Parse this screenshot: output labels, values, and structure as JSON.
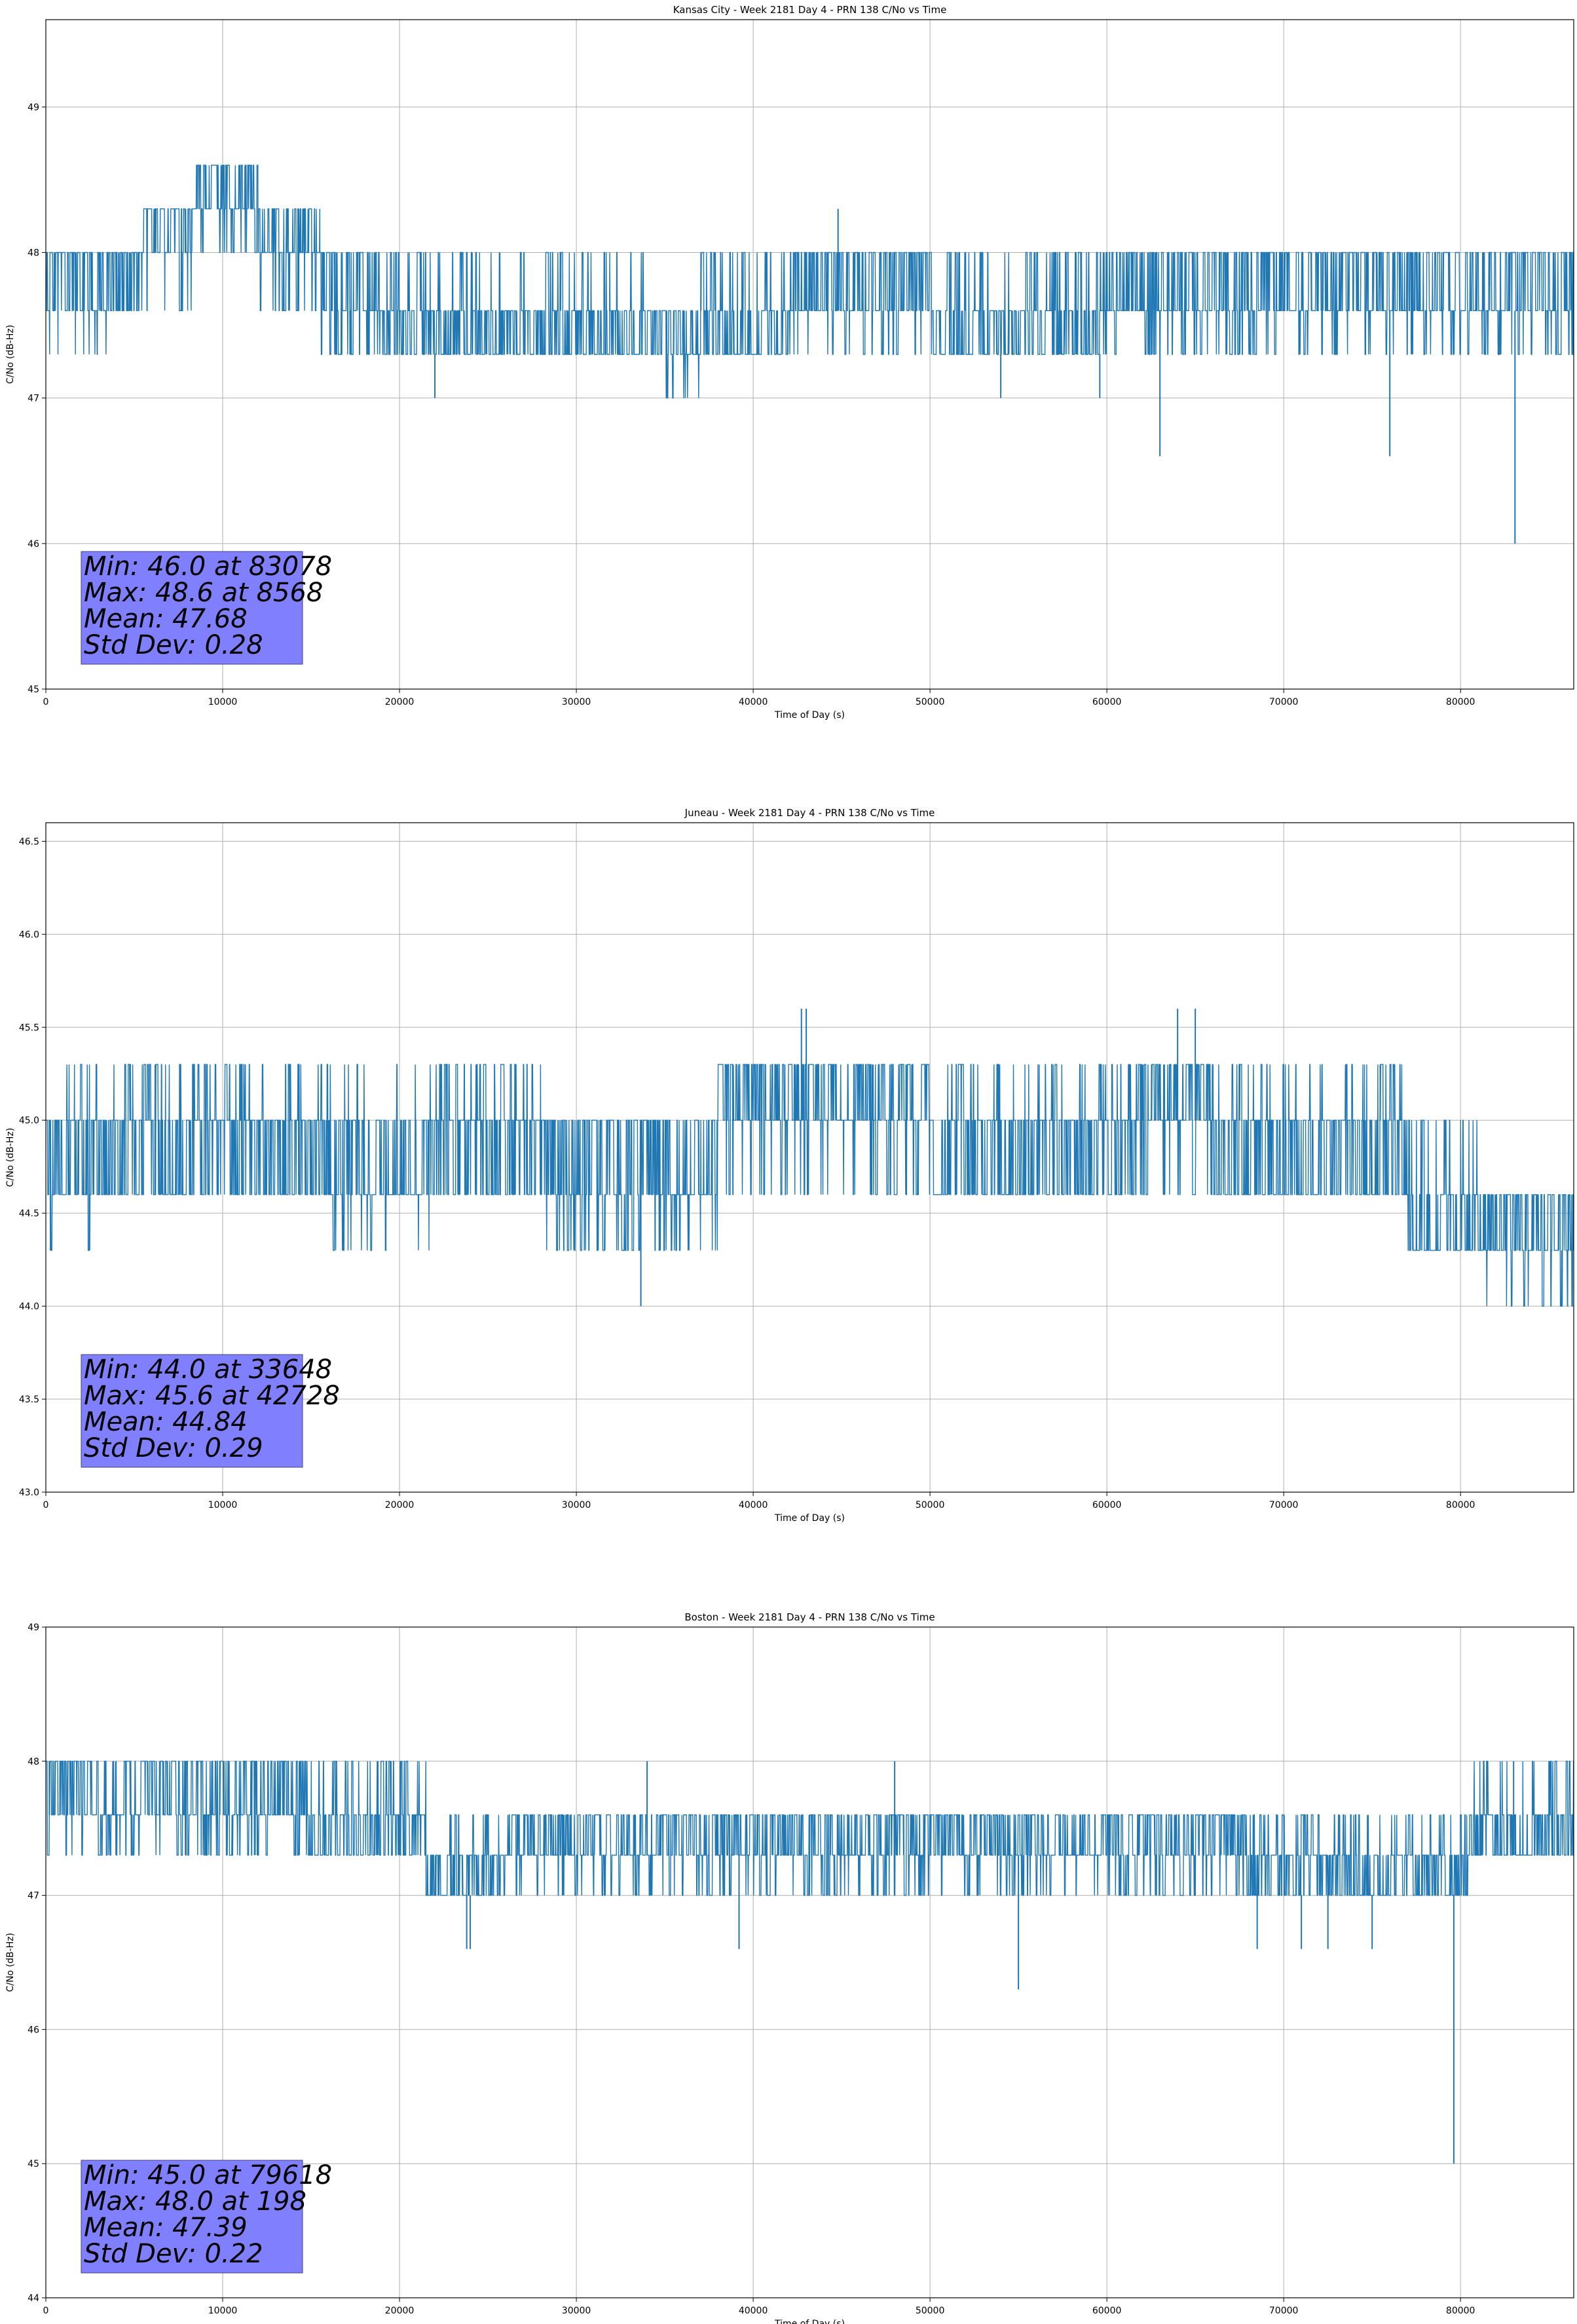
{
  "chart_data": [
    {
      "type": "line",
      "title": "Kansas City - Week 2181 Day 4 - PRN 138 C/No vs Time",
      "xlabel": "Time of Day (s)",
      "ylabel": "C/No (dB-Hz)",
      "xlim": [
        0,
        86400
      ],
      "ylim": [
        45,
        49.6
      ],
      "xticks": [
        "0",
        "10000",
        "20000",
        "30000",
        "40000",
        "50000",
        "60000",
        "70000",
        "80000"
      ],
      "yticks": [
        "45",
        "46",
        "47",
        "48",
        "49"
      ],
      "grid": true,
      "color": "#1f77b4",
      "stats_box_color": "#8080ff",
      "levels": [
        46.0,
        46.6,
        47.0,
        47.3,
        47.6,
        48.0,
        48.3,
        48.6
      ],
      "segments": [
        {
          "x": [
            0,
            3500
          ],
          "dominant": [
            47.6,
            48.0
          ],
          "occasional": [
            47.3
          ]
        },
        {
          "x": [
            3500,
            5500
          ],
          "dominant": [
            47.6,
            48.0
          ],
          "occasional": []
        },
        {
          "x": [
            5500,
            8500
          ],
          "dominant": [
            48.0,
            48.3
          ],
          "occasional": [
            47.6
          ]
        },
        {
          "x": [
            8500,
            12000
          ],
          "dominant": [
            48.3,
            48.6
          ],
          "occasional": [
            48.0
          ]
        },
        {
          "x": [
            12000,
            15500
          ],
          "dominant": [
            48.0,
            48.3
          ],
          "occasional": [
            47.6
          ]
        },
        {
          "x": [
            15500,
            19000
          ],
          "dominant": [
            47.6,
            48.0
          ],
          "occasional": [
            47.3
          ]
        },
        {
          "x": [
            19000,
            34000
          ],
          "dominant": [
            47.3,
            47.6
          ],
          "occasional": [
            48.0
          ]
        },
        {
          "x": [
            34000,
            37000
          ],
          "dominant": [
            47.3,
            47.6
          ],
          "occasional": [
            47.0
          ]
        },
        {
          "x": [
            37000,
            42000
          ],
          "dominant": [
            47.3,
            47.6
          ],
          "occasional": [
            48.0
          ]
        },
        {
          "x": [
            42000,
            50000
          ],
          "dominant": [
            47.6,
            48.0
          ],
          "occasional": [
            47.3
          ]
        },
        {
          "x": [
            50000,
            60000
          ],
          "dominant": [
            47.3,
            47.6
          ],
          "occasional": [
            48.0
          ]
        },
        {
          "x": [
            60000,
            86400
          ],
          "dominant": [
            47.6,
            48.0
          ],
          "occasional": [
            47.3
          ]
        }
      ],
      "spikes": [
        [
          22000,
          47.0
        ],
        [
          54000,
          47.0
        ],
        [
          59600,
          47.0
        ],
        [
          63000,
          46.6
        ],
        [
          76000,
          46.6
        ],
        [
          83078,
          46.0
        ],
        [
          8568,
          48.6
        ],
        [
          44800,
          48.3
        ],
        [
          46200,
          48.0
        ]
      ],
      "stats": [
        "Min: 46.0 at 83078",
        "Max: 48.6 at 8568",
        "Mean: 47.68",
        "Std Dev: 0.28"
      ]
    },
    {
      "type": "line",
      "title": "Juneau - Week 2181 Day 4 - PRN 138 C/No vs Time",
      "xlabel": "Time of Day (s)",
      "ylabel": "C/No (dB-Hz)",
      "xlim": [
        0,
        86400
      ],
      "ylim": [
        43.0,
        46.6
      ],
      "xticks": [
        "0",
        "10000",
        "20000",
        "30000",
        "40000",
        "50000",
        "60000",
        "70000",
        "80000"
      ],
      "yticks": [
        "43.0",
        "43.5",
        "44.0",
        "44.5",
        "45.0",
        "45.5",
        "46.0",
        "46.5"
      ],
      "grid": true,
      "color": "#1f77b4",
      "stats_box_color": "#8080ff",
      "levels": [
        44.0,
        44.3,
        44.6,
        45.0,
        45.3,
        45.6
      ],
      "segments": [
        {
          "x": [
            0,
            2500
          ],
          "dominant": [
            44.6,
            45.0
          ],
          "occasional": [
            44.3,
            45.3
          ]
        },
        {
          "x": [
            2500,
            14500
          ],
          "dominant": [
            44.6,
            45.0
          ],
          "occasional": [
            45.3
          ]
        },
        {
          "x": [
            14500,
            22000
          ],
          "dominant": [
            44.6,
            45.0
          ],
          "occasional": [
            44.3,
            45.3
          ]
        },
        {
          "x": [
            22000,
            28000
          ],
          "dominant": [
            44.6,
            45.0
          ],
          "occasional": [
            45.3
          ]
        },
        {
          "x": [
            28000,
            38000
          ],
          "dominant": [
            44.6,
            45.0
          ],
          "occasional": [
            44.3
          ]
        },
        {
          "x": [
            38000,
            50000
          ],
          "dominant": [
            45.0,
            45.3
          ],
          "occasional": [
            44.6
          ]
        },
        {
          "x": [
            50000,
            62000
          ],
          "dominant": [
            44.6,
            45.0
          ],
          "occasional": [
            45.3
          ]
        },
        {
          "x": [
            62000,
            66000
          ],
          "dominant": [
            45.0,
            45.3
          ],
          "occasional": [
            44.6
          ]
        },
        {
          "x": [
            66000,
            77000
          ],
          "dominant": [
            44.6,
            45.0
          ],
          "occasional": [
            45.3
          ]
        },
        {
          "x": [
            77000,
            81000
          ],
          "dominant": [
            44.3,
            44.6
          ],
          "occasional": [
            45.0
          ]
        },
        {
          "x": [
            81000,
            86400
          ],
          "dominant": [
            44.3,
            44.6
          ],
          "occasional": [
            44.0
          ]
        }
      ],
      "spikes": [
        [
          33648,
          44.0
        ],
        [
          42728,
          45.6
        ],
        [
          43000,
          45.6
        ],
        [
          64000,
          45.6
        ],
        [
          65000,
          45.6
        ]
      ],
      "stats": [
        "Min: 44.0 at 33648",
        "Max: 45.6 at 42728",
        "Mean: 44.84",
        "Std Dev: 0.29"
      ]
    },
    {
      "type": "line",
      "title": "Boston - Week 2181 Day 4 - PRN 138 C/No vs Time",
      "xlabel": "Time of Day (s)",
      "ylabel": "C/No (dB-Hz)",
      "xlim": [
        0,
        86400
      ],
      "ylim": [
        44,
        49
      ],
      "xticks": [
        "0",
        "10000",
        "20000",
        "30000",
        "40000",
        "50000",
        "60000",
        "70000",
        "80000"
      ],
      "yticks": [
        "44",
        "45",
        "46",
        "47",
        "48",
        "49"
      ],
      "grid": true,
      "color": "#1f77b4",
      "stats_box_color": "#8080ff",
      "levels": [
        45.0,
        46.3,
        46.6,
        47.0,
        47.3,
        47.6,
        48.0
      ],
      "segments": [
        {
          "x": [
            0,
            14000
          ],
          "dominant": [
            47.6,
            48.0
          ],
          "occasional": [
            47.3
          ]
        },
        {
          "x": [
            14000,
            21500
          ],
          "dominant": [
            47.3,
            47.6
          ],
          "occasional": [
            48.0
          ]
        },
        {
          "x": [
            21500,
            26000
          ],
          "dominant": [
            47.0,
            47.3
          ],
          "occasional": [
            47.6
          ]
        },
        {
          "x": [
            26000,
            68000
          ],
          "dominant": [
            47.3,
            47.6
          ],
          "occasional": [
            47.0
          ]
        },
        {
          "x": [
            68000,
            80500
          ],
          "dominant": [
            47.0,
            47.3
          ],
          "occasional": [
            47.6
          ]
        },
        {
          "x": [
            80500,
            86400
          ],
          "dominant": [
            47.3,
            47.6
          ],
          "occasional": [
            48.0
          ]
        }
      ],
      "spikes": [
        [
          198,
          48.0
        ],
        [
          23800,
          46.6
        ],
        [
          24000,
          46.6
        ],
        [
          34000,
          48.0
        ],
        [
          39200,
          46.6
        ],
        [
          48000,
          48.0
        ],
        [
          55000,
          46.3
        ],
        [
          68500,
          46.6
        ],
        [
          71000,
          46.6
        ],
        [
          72500,
          46.6
        ],
        [
          75000,
          46.6
        ],
        [
          79618,
          45.0
        ],
        [
          83000,
          48.0
        ],
        [
          85000,
          48.0
        ]
      ],
      "stats": [
        "Min: 45.0 at 79618",
        "Max: 48.0 at 198",
        "Mean: 47.39",
        "Std Dev: 0.22"
      ]
    }
  ]
}
